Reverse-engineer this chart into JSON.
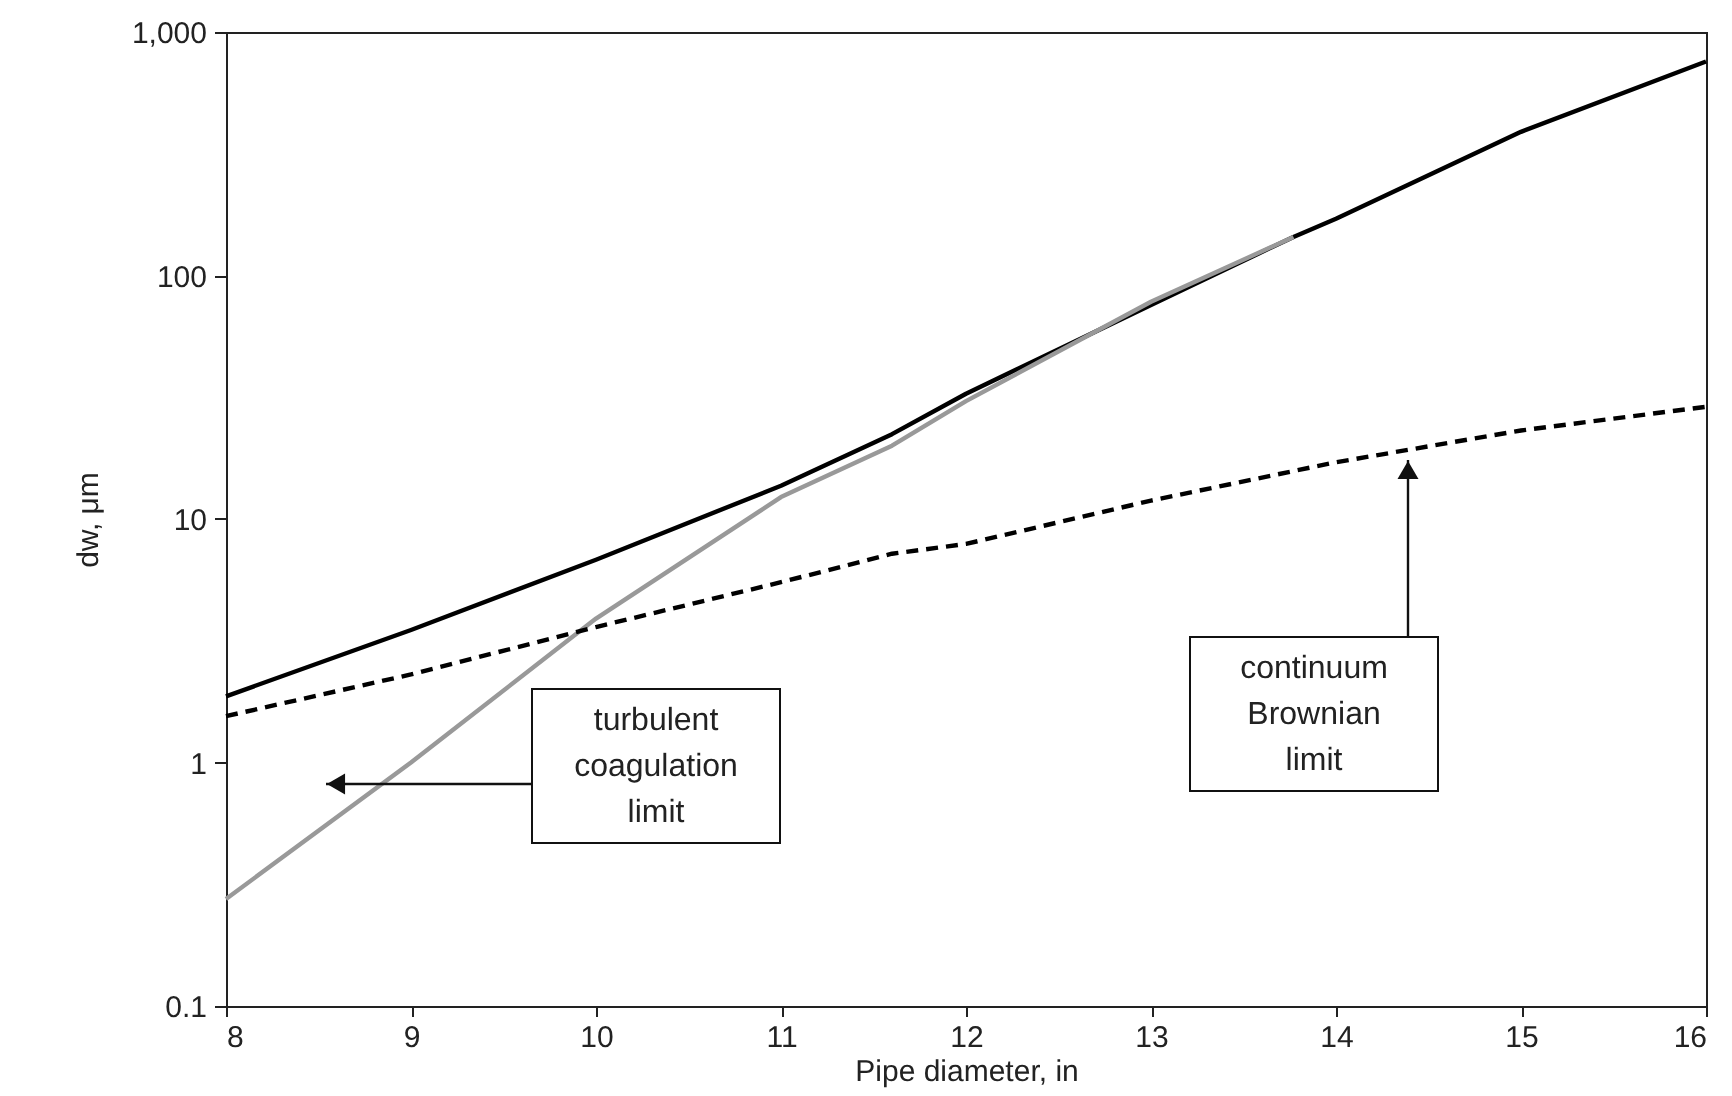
{
  "chart_data": {
    "type": "line",
    "xlabel": "Pipe diameter, in",
    "ylabel": "dw, μm",
    "log": "y",
    "xlim": [
      8,
      16
    ],
    "xticks": [
      8,
      9,
      10,
      11,
      12,
      13,
      14,
      15,
      16
    ],
    "ylim": [
      0.1,
      1000
    ],
    "yticks": [
      0.1,
      1,
      10,
      100,
      {
        "value": 1000,
        "label": "1,000"
      }
    ],
    "grid": false,
    "marker": "none",
    "series": [
      {
        "color": "#000000",
        "line_style": "solid",
        "x": [
          8,
          9,
          10,
          11,
          11.6,
          12,
          13,
          13.77,
          14,
          15,
          16
        ],
        "values": [
          1.87,
          3.5,
          6.8,
          13.7,
          22.3,
          32.7,
          75.7,
          144,
          171,
          389,
          757
        ]
      },
      {
        "color": "#999999",
        "line_style": "solid",
        "x": [
          8,
          9,
          10,
          11,
          11.6,
          12,
          13,
          13.77
        ],
        "values": [
          0.275,
          1.0,
          3.9,
          12.3,
          20,
          30.5,
          78,
          144
        ]
      },
      {
        "color": "#000000",
        "line_style": "dashed",
        "x": [
          8,
          9,
          10,
          11,
          11.6,
          12,
          13,
          14,
          15,
          16
        ],
        "values": [
          1.55,
          2.3,
          3.6,
          5.5,
          7.2,
          7.9,
          11.9,
          17.1,
          23.1,
          28.9
        ]
      }
    ],
    "annotations": [
      "turbulent coagulation limit",
      "continuum Brownian limit"
    ]
  }
}
